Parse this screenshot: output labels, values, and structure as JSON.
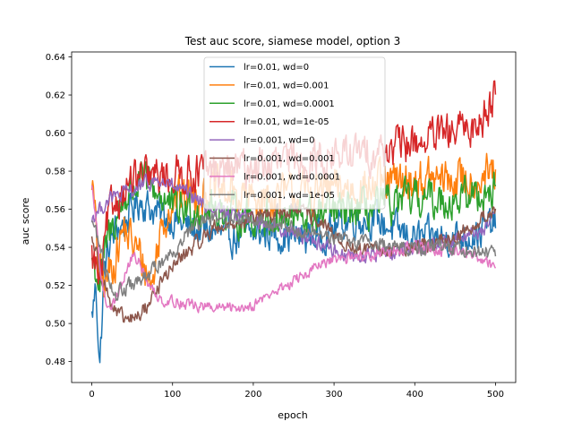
{
  "chart_data": {
    "type": "line",
    "title": "Test auc score, siamese model, option 3",
    "xlabel": "epoch",
    "ylabel": "auc score",
    "xlim": [
      -25,
      525
    ],
    "ylim": [
      0.469,
      0.6426
    ],
    "xticks": [
      0,
      100,
      200,
      300,
      400,
      500
    ],
    "yticks": [
      0.48,
      0.5,
      0.52,
      0.54,
      0.56,
      0.58,
      0.6,
      0.62,
      0.64
    ],
    "grid": false,
    "legend_position": "top-center",
    "series": [
      {
        "name": "lr=0.01, wd=0",
        "color": "#1f77b4",
        "keypoints": [
          [
            0,
            0.503
          ],
          [
            5,
            0.52
          ],
          [
            10,
            0.478
          ],
          [
            15,
            0.525
          ],
          [
            20,
            0.538
          ],
          [
            30,
            0.55
          ],
          [
            40,
            0.552
          ],
          [
            50,
            0.56
          ],
          [
            60,
            0.565
          ],
          [
            80,
            0.558
          ],
          [
            100,
            0.555
          ],
          [
            120,
            0.55
          ],
          [
            150,
            0.548
          ],
          [
            180,
            0.545
          ],
          [
            200,
            0.547
          ],
          [
            220,
            0.548
          ],
          [
            250,
            0.545
          ],
          [
            280,
            0.546
          ],
          [
            300,
            0.55
          ],
          [
            320,
            0.555
          ],
          [
            350,
            0.555
          ],
          [
            380,
            0.548
          ],
          [
            400,
            0.545
          ],
          [
            420,
            0.545
          ],
          [
            450,
            0.545
          ],
          [
            480,
            0.548
          ],
          [
            500,
            0.553
          ]
        ],
        "noise": 0.009
      },
      {
        "name": "lr=0.01, wd=0.001",
        "color": "#ff7f0e",
        "keypoints": [
          [
            0,
            0.578
          ],
          [
            4,
            0.555
          ],
          [
            8,
            0.53
          ],
          [
            15,
            0.52
          ],
          [
            25,
            0.53
          ],
          [
            40,
            0.55
          ],
          [
            60,
            0.535
          ],
          [
            75,
            0.52
          ],
          [
            85,
            0.55
          ],
          [
            100,
            0.565
          ],
          [
            150,
            0.57
          ],
          [
            200,
            0.565
          ],
          [
            250,
            0.568
          ],
          [
            300,
            0.57
          ],
          [
            350,
            0.572
          ],
          [
            400,
            0.575
          ],
          [
            450,
            0.575
          ],
          [
            500,
            0.578
          ]
        ],
        "noise": 0.011
      },
      {
        "name": "lr=0.01, wd=0.0001",
        "color": "#2ca02c",
        "keypoints": [
          [
            0,
            0.535
          ],
          [
            10,
            0.52
          ],
          [
            20,
            0.545
          ],
          [
            40,
            0.565
          ],
          [
            60,
            0.575
          ],
          [
            80,
            0.57
          ],
          [
            100,
            0.56
          ],
          [
            150,
            0.56
          ],
          [
            200,
            0.555
          ],
          [
            250,
            0.555
          ],
          [
            300,
            0.558
          ],
          [
            350,
            0.56
          ],
          [
            400,
            0.565
          ],
          [
            450,
            0.565
          ],
          [
            500,
            0.57
          ]
        ],
        "noise": 0.01
      },
      {
        "name": "lr=0.01, wd=1e-05",
        "color": "#d62728",
        "keypoints": [
          [
            0,
            0.535
          ],
          [
            5,
            0.53
          ],
          [
            10,
            0.52
          ],
          [
            20,
            0.555
          ],
          [
            30,
            0.565
          ],
          [
            50,
            0.575
          ],
          [
            100,
            0.578
          ],
          [
            150,
            0.58
          ],
          [
            200,
            0.582
          ],
          [
            250,
            0.585
          ],
          [
            300,
            0.588
          ],
          [
            350,
            0.59
          ],
          [
            400,
            0.595
          ],
          [
            450,
            0.6
          ],
          [
            480,
            0.605
          ],
          [
            500,
            0.622
          ]
        ],
        "noise": 0.01
      },
      {
        "name": "lr=0.001, wd=0",
        "color": "#9467bd",
        "keypoints": [
          [
            0,
            0.555
          ],
          [
            10,
            0.56
          ],
          [
            20,
            0.565
          ],
          [
            40,
            0.568
          ],
          [
            60,
            0.572
          ],
          [
            80,
            0.575
          ],
          [
            100,
            0.572
          ],
          [
            150,
            0.56
          ],
          [
            200,
            0.555
          ],
          [
            250,
            0.548
          ],
          [
            270,
            0.545
          ],
          [
            300,
            0.538
          ],
          [
            330,
            0.535
          ],
          [
            360,
            0.537
          ],
          [
            400,
            0.54
          ],
          [
            450,
            0.545
          ],
          [
            480,
            0.548
          ],
          [
            500,
            0.555
          ]
        ],
        "noise": 0.004
      },
      {
        "name": "lr=0.001, wd=0.001",
        "color": "#8c564b",
        "keypoints": [
          [
            0,
            0.545
          ],
          [
            5,
            0.538
          ],
          [
            10,
            0.53
          ],
          [
            20,
            0.515
          ],
          [
            30,
            0.505
          ],
          [
            40,
            0.502
          ],
          [
            50,
            0.502
          ],
          [
            60,
            0.505
          ],
          [
            70,
            0.51
          ],
          [
            80,
            0.518
          ],
          [
            100,
            0.53
          ],
          [
            150,
            0.55
          ],
          [
            200,
            0.555
          ],
          [
            250,
            0.56
          ],
          [
            280,
            0.555
          ],
          [
            300,
            0.545
          ],
          [
            320,
            0.54
          ],
          [
            350,
            0.538
          ],
          [
            400,
            0.54
          ],
          [
            450,
            0.545
          ],
          [
            500,
            0.56
          ]
        ],
        "noise": 0.004
      },
      {
        "name": "lr=0.001, wd=0.0001",
        "color": "#e377c2",
        "keypoints": [
          [
            0,
            0.57
          ],
          [
            5,
            0.555
          ],
          [
            10,
            0.53
          ],
          [
            15,
            0.515
          ],
          [
            20,
            0.51
          ],
          [
            30,
            0.512
          ],
          [
            40,
            0.525
          ],
          [
            50,
            0.535
          ],
          [
            60,
            0.532
          ],
          [
            70,
            0.52
          ],
          [
            80,
            0.515
          ],
          [
            90,
            0.512
          ],
          [
            100,
            0.512
          ],
          [
            120,
            0.51
          ],
          [
            150,
            0.508
          ],
          [
            180,
            0.508
          ],
          [
            200,
            0.51
          ],
          [
            220,
            0.515
          ],
          [
            250,
            0.522
          ],
          [
            280,
            0.53
          ],
          [
            300,
            0.533
          ],
          [
            350,
            0.537
          ],
          [
            400,
            0.54
          ],
          [
            450,
            0.538
          ],
          [
            480,
            0.535
          ],
          [
            500,
            0.53
          ]
        ],
        "noise": 0.003
      },
      {
        "name": "lr=0.001, wd=1e-05",
        "color": "#7f7f7f",
        "keypoints": [
          [
            0,
            0.555
          ],
          [
            5,
            0.548
          ],
          [
            10,
            0.54
          ],
          [
            20,
            0.525
          ],
          [
            30,
            0.515
          ],
          [
            40,
            0.518
          ],
          [
            50,
            0.52
          ],
          [
            60,
            0.522
          ],
          [
            70,
            0.525
          ],
          [
            80,
            0.53
          ],
          [
            100,
            0.538
          ],
          [
            120,
            0.548
          ],
          [
            150,
            0.555
          ],
          [
            200,
            0.555
          ],
          [
            250,
            0.55
          ],
          [
            300,
            0.545
          ],
          [
            350,
            0.542
          ],
          [
            400,
            0.54
          ],
          [
            450,
            0.54
          ],
          [
            480,
            0.538
          ],
          [
            500,
            0.538
          ]
        ],
        "noise": 0.004
      }
    ]
  }
}
